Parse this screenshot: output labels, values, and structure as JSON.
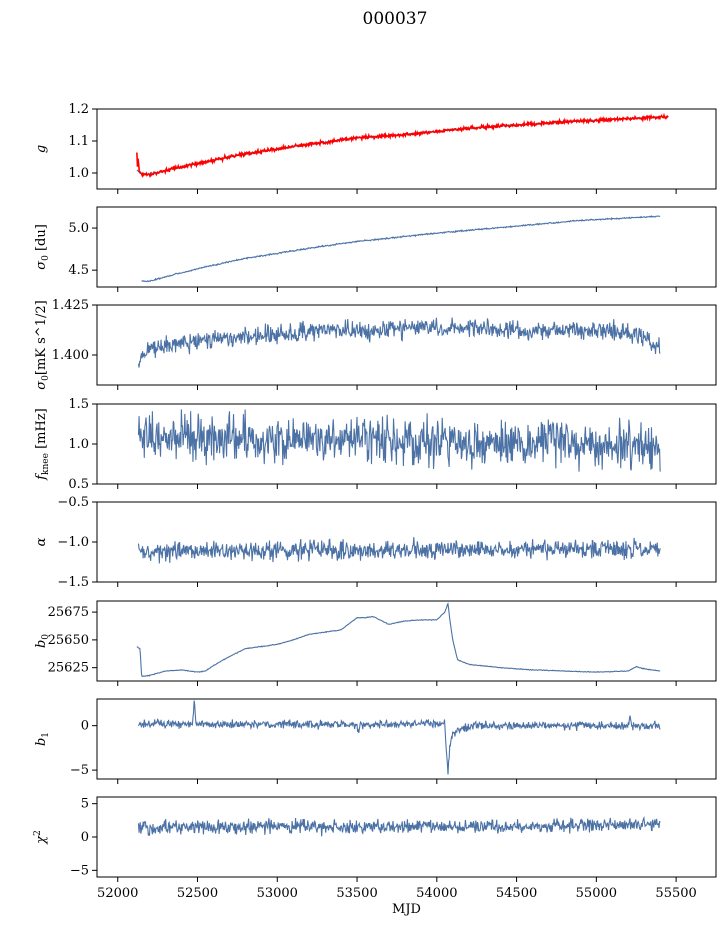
{
  "figure": {
    "title": "000037"
  },
  "colors": {
    "line": "#4c72a5",
    "overlay": "#ff0000"
  },
  "chart_data": [
    {
      "type": "line",
      "ylabel": "g",
      "ylim": [
        0.95,
        1.2
      ],
      "yticks": [
        1.0,
        1.1,
        1.2
      ],
      "ytick_labels": [
        "1.0",
        "1.1",
        "1.2"
      ],
      "series": [
        {
          "x": [
            52120,
            52140,
            52160,
            52200,
            52300,
            52500,
            52800,
            53000,
            53200,
            53500,
            53800,
            54000,
            54200,
            54500,
            54800,
            55000,
            55200,
            55400
          ],
          "y": [
            1.01,
            1.0,
            0.995,
            0.997,
            1.008,
            1.03,
            1.06,
            1.075,
            1.09,
            1.11,
            1.12,
            1.13,
            1.14,
            1.15,
            1.16,
            1.165,
            1.17,
            1.175
          ],
          "noise": 0.002
        },
        {
          "overlay": true,
          "x": [
            52120,
            52125,
            52128,
            52135,
            52150,
            52200,
            52300,
            52500,
            52800,
            53000,
            53200,
            53500,
            53800,
            54000,
            54200,
            54500,
            54800,
            55000,
            55200,
            55450
          ],
          "y": [
            1.06,
            1.01,
            1.05,
            1.005,
            0.998,
            0.995,
            1.008,
            1.03,
            1.06,
            1.075,
            1.09,
            1.11,
            1.12,
            1.13,
            1.14,
            1.15,
            1.16,
            1.165,
            1.17,
            1.175
          ],
          "noise": 0.004
        }
      ]
    },
    {
      "type": "line",
      "ylabel": "σ0 [du]",
      "ylim": [
        4.3,
        5.25
      ],
      "yticks": [
        4.5,
        5.0
      ],
      "ytick_labels": [
        "4.5",
        "5.0"
      ],
      "series": [
        {
          "x": [
            52150,
            52200,
            52400,
            52600,
            52800,
            53000,
            53200,
            53500,
            53800,
            54000,
            54300,
            54600,
            54900,
            55200,
            55400
          ],
          "y": [
            4.37,
            4.37,
            4.47,
            4.56,
            4.64,
            4.7,
            4.76,
            4.84,
            4.9,
            4.94,
            4.99,
            5.04,
            5.09,
            5.12,
            5.14
          ],
          "noise": 0.006
        }
      ]
    },
    {
      "type": "line",
      "ylabel": "σ0[mK s^1/2]",
      "ylim": [
        1.385,
        1.425
      ],
      "yticks": [
        1.4,
        1.425
      ],
      "ytick_labels": [
        "1.400",
        "1.425"
      ],
      "series": [
        {
          "x": [
            52130,
            52200,
            52400,
            52600,
            52800,
            53000,
            53200,
            53400,
            53600,
            53800,
            54000,
            54300,
            54600,
            54900,
            55200,
            55400
          ],
          "y": [
            1.397,
            1.403,
            1.406,
            1.408,
            1.41,
            1.41,
            1.412,
            1.413,
            1.412,
            1.414,
            1.414,
            1.413,
            1.412,
            1.412,
            1.412,
            1.404
          ],
          "noise": 0.0035
        }
      ]
    },
    {
      "type": "line",
      "ylabel": "fknee [mHz]",
      "ylim": [
        0.5,
        1.5
      ],
      "yticks": [
        0.5,
        1.0,
        1.5
      ],
      "ytick_labels": [
        "0.5",
        "1.0",
        "1.5"
      ],
      "series": [
        {
          "x": [
            52130,
            52500,
            53000,
            53500,
            54000,
            54500,
            55000,
            55400
          ],
          "y": [
            1.1,
            1.08,
            1.05,
            1.05,
            1.04,
            1.02,
            1.0,
            0.98
          ],
          "noise": 0.22
        }
      ]
    },
    {
      "type": "line",
      "ylabel": "α",
      "ylim": [
        -1.5,
        -0.5
      ],
      "yticks": [
        -1.5,
        -1.0,
        -0.5
      ],
      "ytick_labels": [
        "−1.5",
        "−1.0",
        "−0.5"
      ],
      "series": [
        {
          "x": [
            52130,
            52500,
            53000,
            53500,
            54000,
            54500,
            55000,
            55400
          ],
          "y": [
            -1.13,
            -1.12,
            -1.1,
            -1.1,
            -1.1,
            -1.09,
            -1.1,
            -1.08
          ],
          "noise": 0.09
        }
      ]
    },
    {
      "type": "line",
      "ylabel": "b0",
      "ylim": [
        25613,
        25685
      ],
      "yticks": [
        25625,
        25650,
        25675
      ],
      "ytick_labels": [
        "25625",
        "25650",
        "25675"
      ],
      "series": [
        {
          "x": [
            52120,
            52140,
            52150,
            52200,
            52300,
            52400,
            52500,
            52550,
            52600,
            52700,
            52800,
            52900,
            53000,
            53100,
            53200,
            53300,
            53400,
            53500,
            53550,
            53600,
            53700,
            53800,
            53900,
            54000,
            54050,
            54070,
            54080,
            54100,
            54130,
            54200,
            54400,
            54600,
            54800,
            55000,
            55200,
            55250,
            55300,
            55400
          ],
          "y": [
            25644,
            25642,
            25617,
            25618,
            25622,
            25623,
            25621,
            25622,
            25627,
            25635,
            25642,
            25644,
            25646,
            25650,
            25655,
            25657,
            25659,
            25670,
            25670,
            25671,
            25664,
            25667,
            25668,
            25668,
            25675,
            25683,
            25670,
            25650,
            25632,
            25628,
            25625,
            25623,
            25622,
            25621,
            25622,
            25626,
            25624,
            25622
          ],
          "noise": 0.25
        }
      ]
    },
    {
      "type": "line",
      "ylabel": "b1",
      "ylim": [
        -6,
        3
      ],
      "yticks": [
        -5,
        0
      ],
      "ytick_labels": [
        "−5",
        "0"
      ],
      "series": [
        {
          "x": [
            52130,
            52470,
            52480,
            52490,
            53500,
            53510,
            53520,
            54050,
            54070,
            54080,
            54100,
            54150,
            54250,
            55200,
            55210,
            55220,
            55400
          ],
          "y": [
            0.2,
            0.2,
            2.8,
            0.2,
            0.1,
            -1.2,
            0.1,
            0.3,
            -5.5,
            -2.5,
            -1.0,
            -0.4,
            0.0,
            0.0,
            1.2,
            0.0,
            0.0
          ],
          "noise": 0.35
        }
      ]
    },
    {
      "type": "line",
      "ylabel": "χ²",
      "xlabel": "MJD",
      "ylim": [
        -6,
        6
      ],
      "yticks": [
        -5,
        0,
        5
      ],
      "ytick_labels": [
        "−5",
        "0",
        "5"
      ],
      "series": [
        {
          "x": [
            52130,
            52500,
            53000,
            53500,
            54000,
            54500,
            55000,
            55400
          ],
          "y": [
            1.4,
            1.5,
            1.6,
            1.5,
            1.6,
            1.6,
            1.7,
            1.7
          ],
          "noise": 0.8
        }
      ]
    }
  ],
  "x_axis": {
    "xlim": [
      51870,
      55750
    ],
    "xticks": [
      52000,
      52500,
      53000,
      53500,
      54000,
      54500,
      55000,
      55500
    ],
    "xtick_labels": [
      "52000",
      "52500",
      "53000",
      "53500",
      "54000",
      "54500",
      "55000",
      "55500"
    ]
  }
}
